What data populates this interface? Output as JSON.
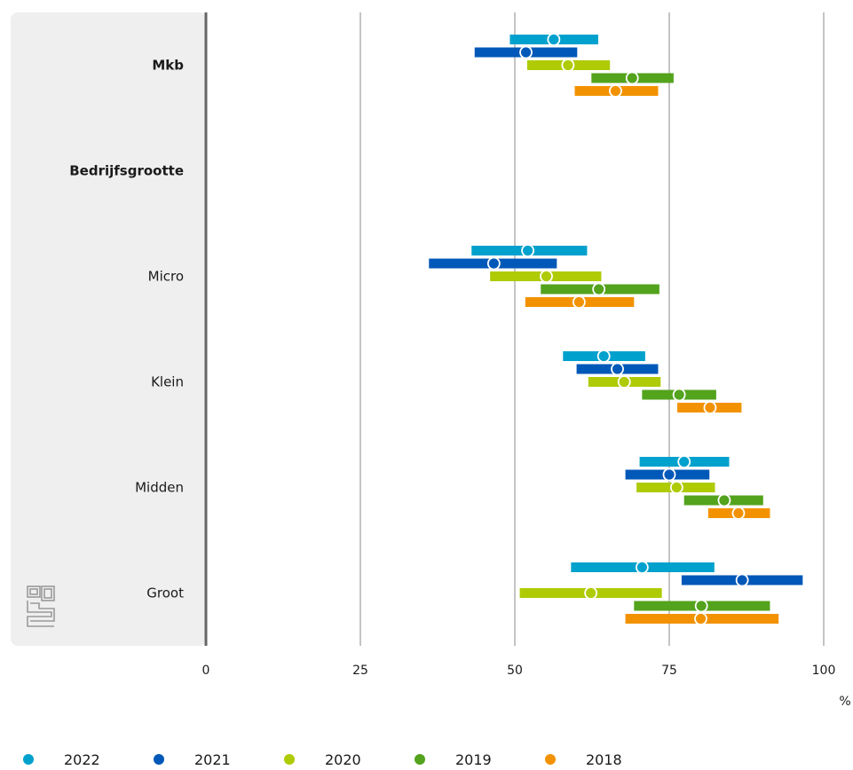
{
  "chart_data": {
    "type": "range",
    "categories": [
      {
        "label": "Mkb",
        "bold": true,
        "has_data": true
      },
      {
        "label": "Bedrijfsgrootte",
        "bold": true,
        "has_data": false
      },
      {
        "label": "Micro",
        "bold": false,
        "has_data": true
      },
      {
        "label": "Klein",
        "bold": false,
        "has_data": true
      },
      {
        "label": "Midden",
        "bold": false,
        "has_data": true
      },
      {
        "label": "Groot",
        "bold": false,
        "has_data": true
      }
    ],
    "series": [
      {
        "name": "2022",
        "color": "#00a1cd",
        "data": [
          {
            "category": "Mkb",
            "low": 49.2,
            "value": 56.3,
            "high": 63.5
          },
          {
            "category": "Micro",
            "low": 43.0,
            "value": 52.1,
            "high": 61.7
          },
          {
            "category": "Klein",
            "low": 57.8,
            "value": 64.4,
            "high": 71.1
          },
          {
            "category": "Midden",
            "low": 70.2,
            "value": 77.4,
            "high": 84.7
          },
          {
            "category": "Groot",
            "low": 59.1,
            "value": 70.6,
            "high": 82.3
          }
        ]
      },
      {
        "name": "2021",
        "color": "#0058b8",
        "data": [
          {
            "category": "Mkb",
            "low": 43.5,
            "value": 51.8,
            "high": 60.1
          },
          {
            "category": "Micro",
            "low": 36.1,
            "value": 46.6,
            "high": 56.8
          },
          {
            "category": "Klein",
            "low": 60.0,
            "value": 66.6,
            "high": 73.2
          },
          {
            "category": "Midden",
            "low": 67.9,
            "value": 75.0,
            "high": 81.5
          },
          {
            "category": "Groot",
            "low": 77.0,
            "value": 86.8,
            "high": 96.6
          }
        ]
      },
      {
        "name": "2020",
        "color": "#afcb05",
        "data": [
          {
            "category": "Mkb",
            "low": 52.0,
            "value": 58.6,
            "high": 65.4
          },
          {
            "category": "Micro",
            "low": 46.0,
            "value": 55.1,
            "high": 64.0
          },
          {
            "category": "Klein",
            "low": 61.9,
            "value": 67.7,
            "high": 73.6
          },
          {
            "category": "Midden",
            "low": 69.7,
            "value": 76.2,
            "high": 82.4
          },
          {
            "category": "Groot",
            "low": 50.8,
            "value": 62.3,
            "high": 73.8
          }
        ]
      },
      {
        "name": "2019",
        "color": "#53a31d",
        "data": [
          {
            "category": "Mkb",
            "low": 62.4,
            "value": 69.0,
            "high": 75.7
          },
          {
            "category": "Micro",
            "low": 54.2,
            "value": 63.6,
            "high": 73.4
          },
          {
            "category": "Klein",
            "low": 70.6,
            "value": 76.6,
            "high": 82.6
          },
          {
            "category": "Midden",
            "low": 77.4,
            "value": 83.9,
            "high": 90.2
          },
          {
            "category": "Groot",
            "low": 69.3,
            "value": 80.2,
            "high": 91.3
          }
        ]
      },
      {
        "name": "2018",
        "color": "#f39200",
        "data": [
          {
            "category": "Mkb",
            "low": 59.7,
            "value": 66.3,
            "high": 73.2
          },
          {
            "category": "Micro",
            "low": 51.7,
            "value": 60.4,
            "high": 69.3
          },
          {
            "category": "Klein",
            "low": 76.3,
            "value": 81.6,
            "high": 86.7
          },
          {
            "category": "Midden",
            "low": 81.3,
            "value": 86.2,
            "high": 91.3
          },
          {
            "category": "Groot",
            "low": 67.9,
            "value": 80.1,
            "high": 92.7
          }
        ]
      }
    ],
    "x_axis": {
      "min": 0,
      "max": 100,
      "ticks": [
        0,
        25,
        50,
        75,
        100
      ],
      "unit": "%"
    },
    "grid": true,
    "legend_position": "bottom"
  }
}
